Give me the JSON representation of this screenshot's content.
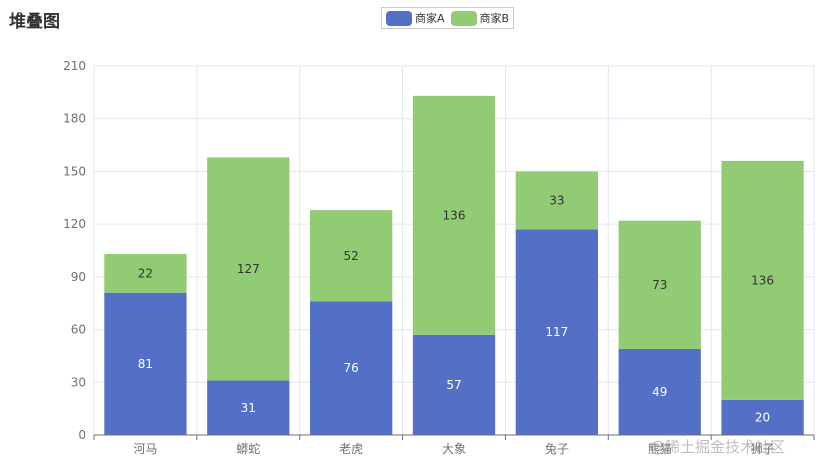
{
  "chart_data": {
    "type": "bar",
    "stacked": true,
    "title": "堆叠图",
    "categories": [
      "河马",
      "蟒蛇",
      "老虎",
      "大象",
      "兔子",
      "熊猫",
      "狮子"
    ],
    "series": [
      {
        "name": "商家A",
        "values": [
          81,
          31,
          76,
          57,
          117,
          49,
          20
        ],
        "color": "#5470c6"
      },
      {
        "name": "商家B",
        "values": [
          22,
          127,
          52,
          136,
          33,
          73,
          136
        ],
        "color": "#91cc75"
      }
    ],
    "ylim": [
      0,
      210
    ],
    "yticks": [
      0,
      30,
      60,
      90,
      120,
      150,
      180,
      210
    ],
    "xlabel": "",
    "ylabel": "",
    "grid": true,
    "legend_position": "top-center",
    "show_data_labels": true
  },
  "watermark": "@稀土掘金技术社区"
}
